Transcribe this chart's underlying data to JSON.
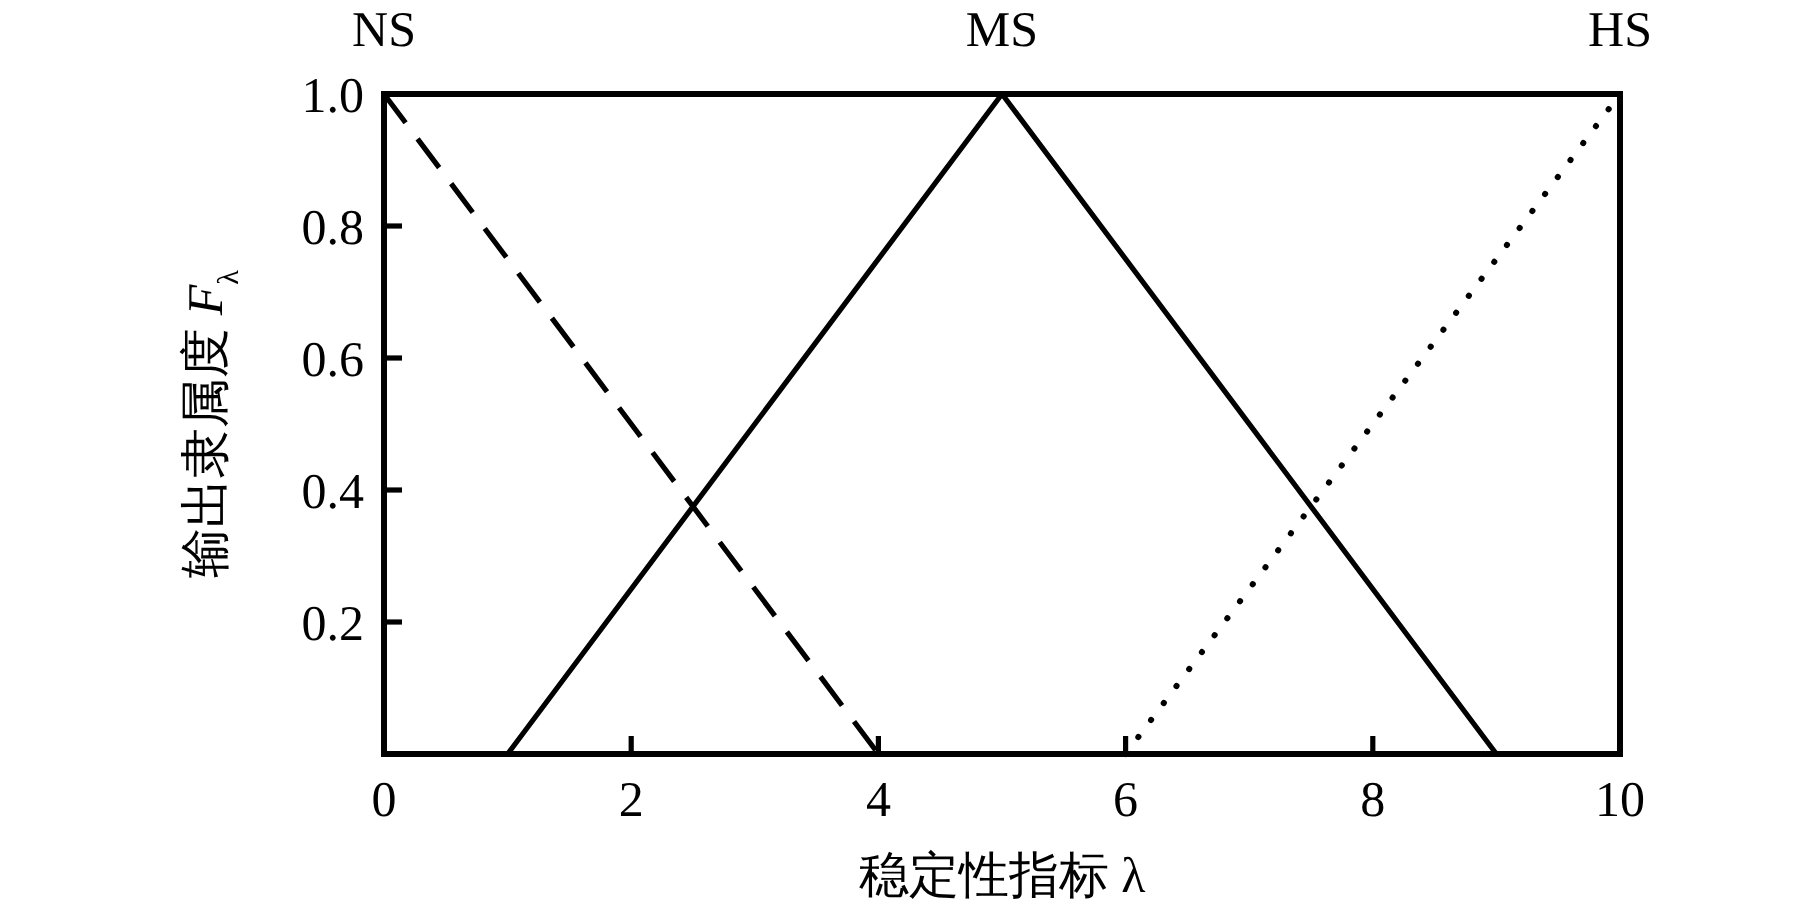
{
  "chart_data": {
    "type": "line",
    "xlabel": "稳定性指标 λ",
    "ylabel": "输出隶属度 *F*$_{λ}$",
    "xlim": [
      0,
      10
    ],
    "ylim": [
      0,
      1
    ],
    "xticks": [
      0,
      2,
      4,
      6,
      8,
      10
    ],
    "yticks": [
      0.2,
      0.4,
      0.6,
      0.8,
      {
        "value": 1,
        "label": "1.0"
      }
    ],
    "series": [
      {
        "name": "NS",
        "color": "#000000",
        "line_style": "dashed",
        "x": [
          0,
          4
        ],
        "values": [
          1,
          0
        ]
      },
      {
        "name": "MS",
        "color": "#000000",
        "line_style": "solid",
        "x": [
          1,
          5,
          9
        ],
        "values": [
          0,
          1,
          0
        ]
      },
      {
        "name": "HS",
        "color": "#000000",
        "line_style": "dotted",
        "x": [
          6,
          10
        ],
        "values": [
          0,
          1
        ]
      }
    ]
  }
}
